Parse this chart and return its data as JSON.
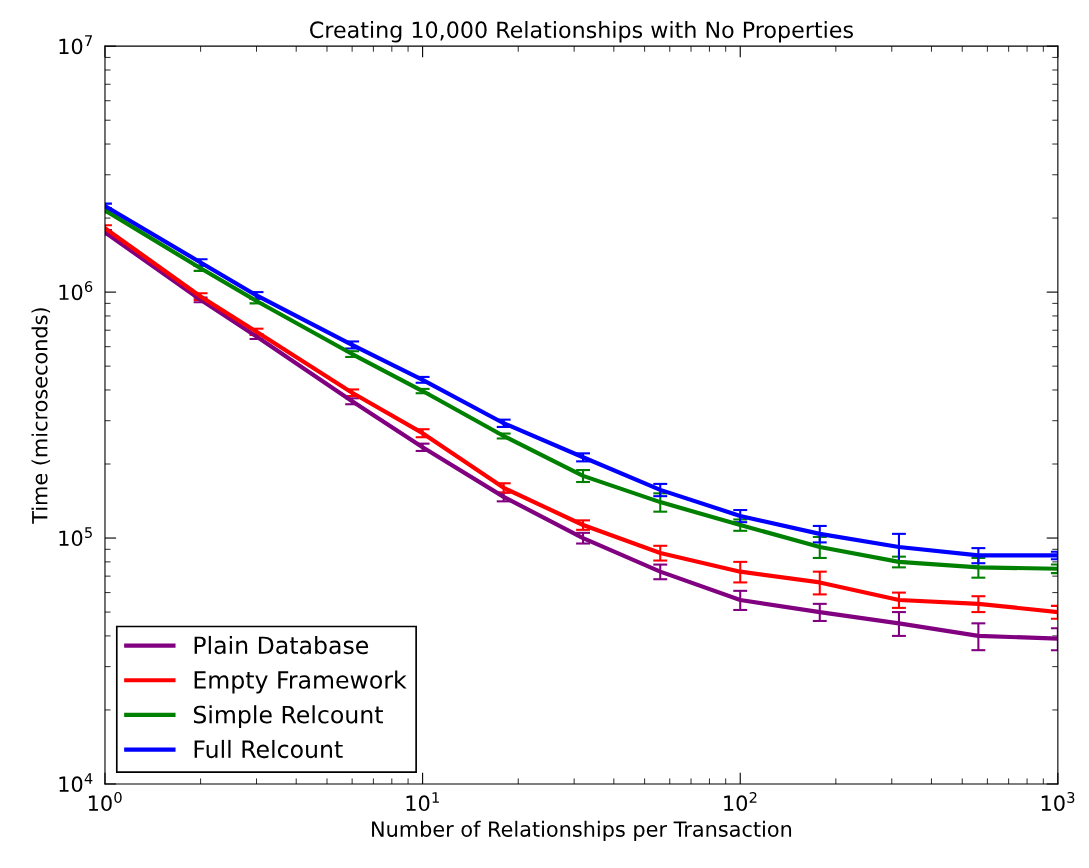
{
  "chart_data": {
    "type": "line",
    "title": "Creating 10,000 Relationships with No Properties",
    "xlabel": "Number of Relationships per Transaction",
    "ylabel": "Time (microseconds)",
    "x": [
      1,
      2,
      3,
      6,
      10,
      18,
      32,
      56,
      100,
      178,
      316,
      562,
      1000
    ],
    "series": [
      {
        "name": "Plain Database",
        "color": "#800080",
        "values": [
          1750000,
          930000,
          660000,
          360000,
          234000,
          147000,
          100000,
          73000,
          56000,
          50000,
          45000,
          40000,
          39000
        ],
        "errors": [
          40000,
          20000,
          15000,
          10000,
          8000,
          6000,
          5000,
          5000,
          5000,
          4000,
          5000,
          5000,
          4000
        ]
      },
      {
        "name": "Empty Framework",
        "color": "#ff0000",
        "values": [
          1820000,
          960000,
          690000,
          390000,
          267000,
          160000,
          113000,
          87000,
          73000,
          66000,
          56000,
          54000,
          50000
        ],
        "errors": [
          50000,
          30000,
          20000,
          12000,
          10000,
          7000,
          5000,
          6000,
          7000,
          7000,
          4000,
          4000,
          3000
        ]
      },
      {
        "name": "Simple Relcount",
        "color": "#008000",
        "values": [
          2150000,
          1250000,
          920000,
          560000,
          396000,
          260000,
          179000,
          140000,
          113000,
          92000,
          80000,
          76000,
          75000
        ],
        "errors": [
          40000,
          30000,
          20000,
          15000,
          8000,
          6000,
          10000,
          12000,
          6000,
          9000,
          4000,
          7000,
          3000
        ]
      },
      {
        "name": "Full Relcount",
        "color": "#0000ff",
        "values": [
          2240000,
          1320000,
          970000,
          610000,
          440000,
          293000,
          213000,
          157000,
          123000,
          104000,
          92000,
          85000,
          85000
        ],
        "errors": [
          50000,
          40000,
          30000,
          20000,
          12000,
          10000,
          8000,
          9000,
          7000,
          8000,
          12000,
          6000,
          3000
        ]
      }
    ],
    "log": "xy",
    "xlim": [
      1,
      1000
    ],
    "ylim": [
      10000,
      10000000
    ],
    "xticks": [
      {
        "value": 1,
        "label": "10$^{0}$"
      },
      {
        "value": 10,
        "label": "10$^{1}$"
      },
      {
        "value": 100,
        "label": "10$^{2}$"
      },
      {
        "value": 1000,
        "label": "10$^{3}$"
      }
    ],
    "yticks": [
      {
        "value": 10000,
        "label": "10$^{4}$"
      },
      {
        "value": 100000,
        "label": "10$^{5}$"
      },
      {
        "value": 1000000,
        "label": "10$^{6}$"
      },
      {
        "value": 10000000,
        "label": "10$^{7}$"
      }
    ],
    "legend": "bottom left",
    "grid": false,
    "marker": "none",
    "line_style": "solid"
  }
}
